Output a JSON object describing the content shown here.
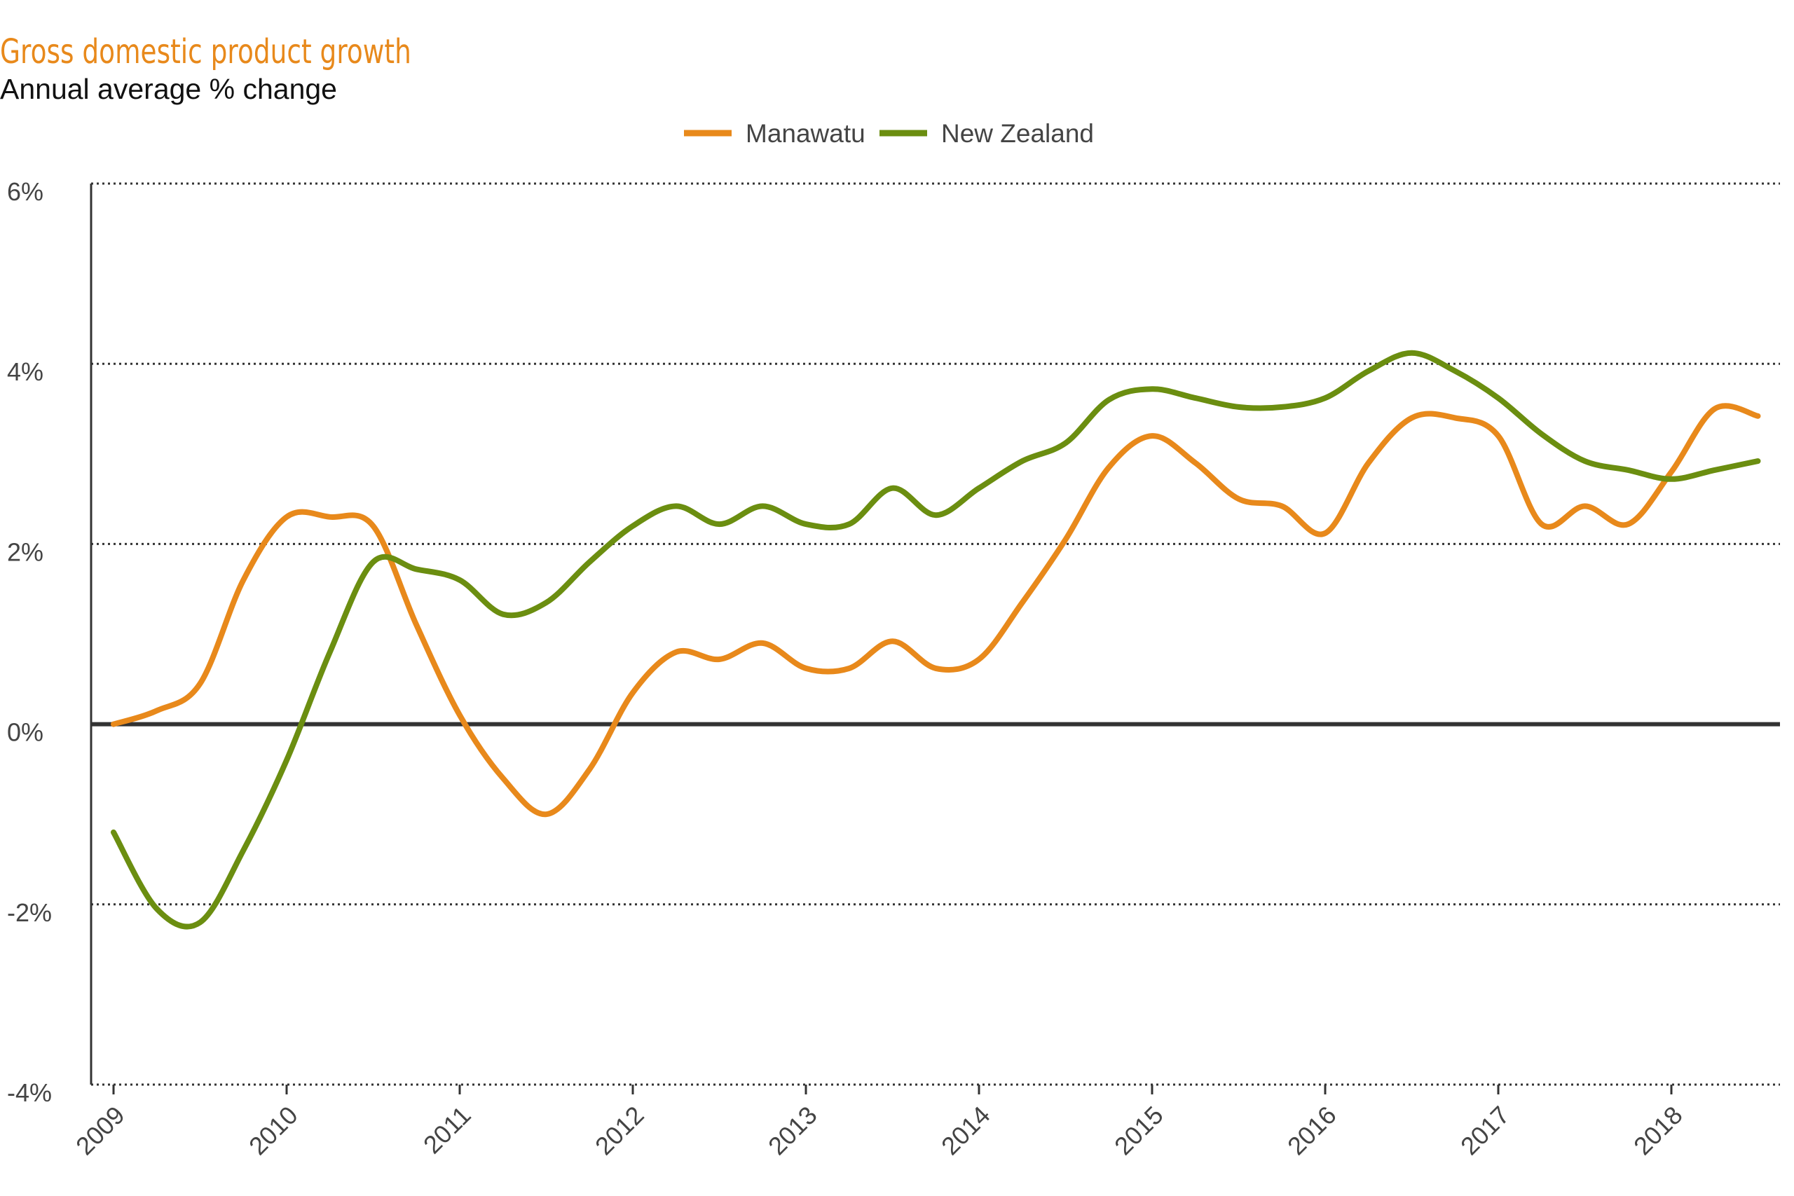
{
  "chart_data": {
    "type": "line",
    "title": "Gross domestic product growth",
    "subtitle": "Annual average % change",
    "xlabel": "",
    "ylabel": "",
    "xlim": [
      2008.87,
      2018.5
    ],
    "ylim": [
      -4,
      6
    ],
    "y_ticks": [
      {
        "value": 6,
        "label": "6%"
      },
      {
        "value": 4,
        "label": "4%"
      },
      {
        "value": 2,
        "label": "2%"
      },
      {
        "value": 0,
        "label": "0%"
      },
      {
        "value": -2,
        "label": "-2%"
      },
      {
        "value": -4,
        "label": "-4%"
      }
    ],
    "x_ticks": [
      2009,
      2010,
      2011,
      2012,
      2013,
      2014,
      2015,
      2016,
      2017,
      2018
    ],
    "x_tick_labels": [
      "2009",
      "2010",
      "2011",
      "2012",
      "2013",
      "2014",
      "2015",
      "2016",
      "2017",
      "2018"
    ],
    "grid": "horizontal dotted",
    "legend_position": "top-center",
    "series": [
      {
        "name": "Manawatu",
        "color": "#e8891b",
        "points": [
          [
            2009.0,
            0.0
          ],
          [
            2009.25,
            0.15
          ],
          [
            2009.5,
            0.45
          ],
          [
            2009.75,
            1.6
          ],
          [
            2010.0,
            2.3
          ],
          [
            2010.25,
            2.3
          ],
          [
            2010.5,
            2.2
          ],
          [
            2010.75,
            1.1
          ],
          [
            2011.0,
            0.1
          ],
          [
            2011.25,
            -0.6
          ],
          [
            2011.5,
            -1.0
          ],
          [
            2011.75,
            -0.5
          ],
          [
            2012.0,
            0.35
          ],
          [
            2012.25,
            0.8
          ],
          [
            2012.5,
            0.72
          ],
          [
            2012.75,
            0.9
          ],
          [
            2013.0,
            0.62
          ],
          [
            2013.25,
            0.62
          ],
          [
            2013.5,
            0.92
          ],
          [
            2013.75,
            0.62
          ],
          [
            2014.0,
            0.72
          ],
          [
            2014.25,
            1.35
          ],
          [
            2014.5,
            2.05
          ],
          [
            2014.75,
            2.85
          ],
          [
            2015.0,
            3.2
          ],
          [
            2015.25,
            2.9
          ],
          [
            2015.5,
            2.5
          ],
          [
            2015.75,
            2.42
          ],
          [
            2016.0,
            2.12
          ],
          [
            2016.25,
            2.9
          ],
          [
            2016.5,
            3.4
          ],
          [
            2016.75,
            3.4
          ],
          [
            2017.0,
            3.2
          ],
          [
            2017.25,
            2.22
          ],
          [
            2017.5,
            2.42
          ],
          [
            2017.75,
            2.22
          ],
          [
            2018.0,
            2.8
          ],
          [
            2018.25,
            3.5
          ],
          [
            2018.5,
            3.42
          ]
        ]
      },
      {
        "name": "New Zealand",
        "color": "#6b8e10",
        "points": [
          [
            2009.0,
            -1.2
          ],
          [
            2009.25,
            -2.05
          ],
          [
            2009.5,
            -2.2
          ],
          [
            2009.75,
            -1.4
          ],
          [
            2010.0,
            -0.4
          ],
          [
            2010.25,
            0.8
          ],
          [
            2010.5,
            1.8
          ],
          [
            2010.75,
            1.72
          ],
          [
            2011.0,
            1.6
          ],
          [
            2011.25,
            1.22
          ],
          [
            2011.5,
            1.35
          ],
          [
            2011.75,
            1.8
          ],
          [
            2012.0,
            2.2
          ],
          [
            2012.25,
            2.42
          ],
          [
            2012.5,
            2.22
          ],
          [
            2012.75,
            2.42
          ],
          [
            2013.0,
            2.22
          ],
          [
            2013.25,
            2.22
          ],
          [
            2013.5,
            2.62
          ],
          [
            2013.75,
            2.32
          ],
          [
            2014.0,
            2.62
          ],
          [
            2014.25,
            2.92
          ],
          [
            2014.5,
            3.12
          ],
          [
            2014.75,
            3.6
          ],
          [
            2015.0,
            3.72
          ],
          [
            2015.25,
            3.62
          ],
          [
            2015.5,
            3.52
          ],
          [
            2015.75,
            3.52
          ],
          [
            2016.0,
            3.62
          ],
          [
            2016.25,
            3.92
          ],
          [
            2016.5,
            4.12
          ],
          [
            2016.75,
            3.92
          ],
          [
            2017.0,
            3.62
          ],
          [
            2017.25,
            3.22
          ],
          [
            2017.5,
            2.92
          ],
          [
            2017.75,
            2.82
          ],
          [
            2018.0,
            2.72
          ],
          [
            2018.25,
            2.82
          ],
          [
            2018.5,
            2.92
          ]
        ]
      }
    ]
  }
}
